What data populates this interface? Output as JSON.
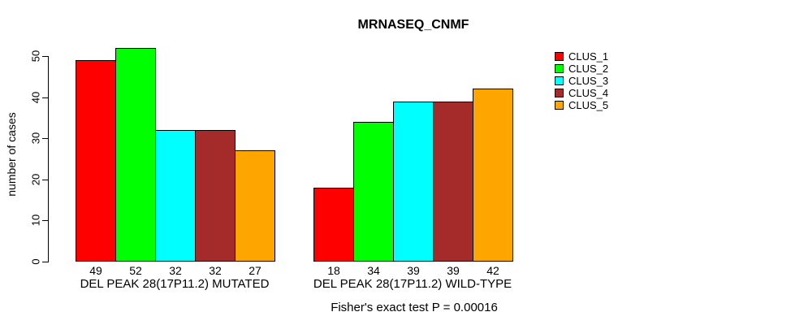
{
  "title": "MRNASEQ_CNMF",
  "y_axis": {
    "label": "number of cases",
    "ticks": [
      0,
      10,
      20,
      30,
      40,
      50
    ]
  },
  "footer": "Fisher's exact test P = 0.00016",
  "legend": {
    "position": "right",
    "items": [
      {
        "label": "CLUS_1",
        "color": "#FF0000"
      },
      {
        "label": "CLUS_2",
        "color": "#00FF00"
      },
      {
        "label": "CLUS_3",
        "color": "#00FFFF"
      },
      {
        "label": "CLUS_4",
        "color": "#A52A2A"
      },
      {
        "label": "CLUS_5",
        "color": "#FFA500"
      }
    ]
  },
  "chart_data": {
    "type": "bar",
    "title": "MRNASEQ_CNMF",
    "xlabel": "",
    "ylabel": "number of cases",
    "ylim": [
      0,
      52
    ],
    "y_ticks": [
      0,
      10,
      20,
      30,
      40,
      50
    ],
    "grid": false,
    "legend_position": "right",
    "categories": [
      "DEL PEAK 28(17P11.2) MUTATED",
      "DEL PEAK 28(17P11.2) WILD-TYPE"
    ],
    "series": [
      {
        "name": "CLUS_1",
        "color": "#FF0000",
        "values": [
          49,
          18
        ]
      },
      {
        "name": "CLUS_2",
        "color": "#00FF00",
        "values": [
          52,
          34
        ]
      },
      {
        "name": "CLUS_3",
        "color": "#00FFFF",
        "values": [
          32,
          39
        ]
      },
      {
        "name": "CLUS_4",
        "color": "#A52A2A",
        "values": [
          32,
          39
        ]
      },
      {
        "name": "CLUS_5",
        "color": "#FFA500",
        "values": [
          27,
          42
        ]
      }
    ],
    "bar_value_labels": [
      [
        49,
        52,
        32,
        32,
        27
      ],
      [
        18,
        34,
        39,
        39,
        42
      ]
    ],
    "annotation": "Fisher's exact test P = 0.00016"
  }
}
